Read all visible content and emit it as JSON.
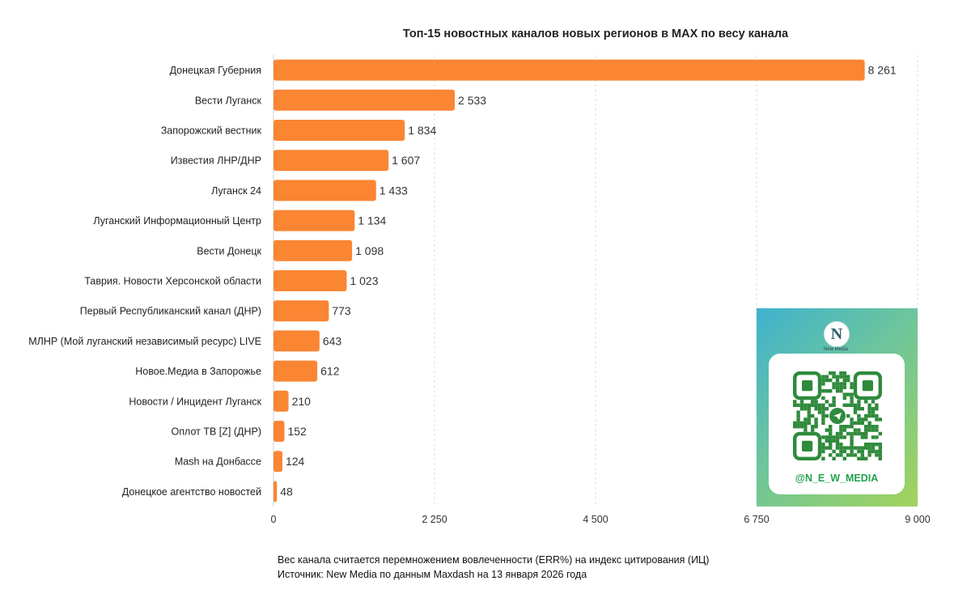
{
  "chart_data": {
    "type": "bar",
    "orientation": "horizontal",
    "title": "Топ-15 новостных каналов новых регионов в MAX по весу канала",
    "categories": [
      "Донецкая Губерния",
      "Вести Луганск",
      "Запорожский вестник",
      "Известия ЛНР/ДНР",
      "Луганск 24",
      "Луганский Информационный Центр",
      "Вести Донецк",
      "Таврия. Новости Херсонской области",
      "Первый Республиканский канал (ДНР)",
      "МЛНР (Мой луганский независимый ресурс) LIVE",
      "Новое.Медиа в Запорожье",
      "Новости / Инцидент Луганск",
      "Оплот ТВ [Z] (ДНР)",
      "Mash на Донбассе",
      "Донецкое агентство новостей"
    ],
    "values": [
      8261,
      2533,
      1834,
      1607,
      1433,
      1134,
      1098,
      1023,
      773,
      643,
      612,
      210,
      152,
      124,
      48
    ],
    "value_labels": [
      "8 261",
      "2 533",
      "1 834",
      "1 607",
      "1 433",
      "1 134",
      "1 098",
      "1 023",
      "773",
      "643",
      "612",
      "210",
      "152",
      "124",
      "48"
    ],
    "xlim": [
      0,
      9000
    ],
    "xticks": [
      0,
      2250,
      4500,
      6750,
      9000
    ],
    "xtick_labels": [
      "0",
      "2 250",
      "4 500",
      "6 750",
      "9 000"
    ],
    "xlabel": "",
    "ylabel": "",
    "grid": true,
    "bar_color": "#FA8532"
  },
  "footnote": {
    "line1": "Вес канала считается перемножением вовлеченности (ERR%) на индекс цитирования (ИЦ)",
    "line2": "Источник: New Media по данным Maxdash на 13 января 2026 года"
  },
  "qr_card": {
    "logo_letter": "N",
    "logo_caption": "New Media",
    "handle": "@N_E_W_MEDIA"
  }
}
